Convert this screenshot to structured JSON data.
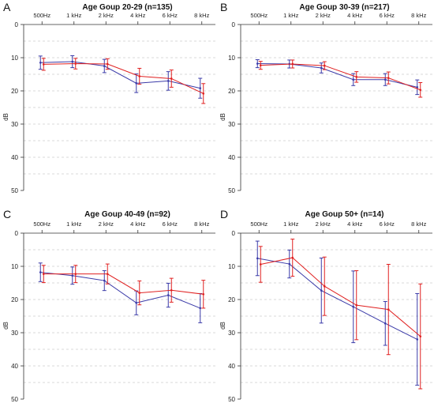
{
  "figure": {
    "colors": {
      "series_blue": "#3a3aa8",
      "series_red": "#e02020",
      "grid": "#cccccc",
      "axis": "#333333"
    }
  },
  "chart_data": [
    {
      "panel_letter": "A",
      "type": "line",
      "title": "Age Goup 20-29 (n=135)",
      "categories": [
        "500Hz",
        "1 kHz",
        "2 kHz",
        "4 kHz",
        "6 kHz",
        "8 kHz"
      ],
      "ylabel": "dB",
      "ylim": [
        0,
        50
      ],
      "y_axis_inverted": true,
      "yticks": [
        "0",
        "10",
        "20",
        "30",
        "40",
        "50"
      ],
      "grid": "horizontal dashed",
      "series": [
        {
          "color": "#3a3aa8",
          "values": [
            11.5,
            11.2,
            12.5,
            17.7,
            17.0,
            19.2
          ],
          "err": [
            2.0,
            1.8,
            2.0,
            2.8,
            2.8,
            3.0
          ]
        },
        {
          "color": "#e02020",
          "values": [
            12.0,
            11.8,
            11.9,
            15.6,
            16.3,
            20.8
          ],
          "err": [
            1.8,
            1.6,
            1.6,
            2.4,
            2.6,
            3.0
          ]
        }
      ]
    },
    {
      "panel_letter": "B",
      "type": "line",
      "title": "Age Goup 30-39 (n=217)",
      "categories": [
        "500Hz",
        "1 kHz",
        "2 kHz",
        "4 kHz",
        "6 kHz",
        "8 kHz"
      ],
      "ylabel": "dB",
      "ylim": [
        0,
        50
      ],
      "y_axis_inverted": true,
      "yticks": [
        "0",
        "10",
        "20",
        "30",
        "40",
        "50"
      ],
      "grid": "horizontal dashed",
      "series": [
        {
          "color": "#3a3aa8",
          "values": [
            11.8,
            11.9,
            13.1,
            16.6,
            16.6,
            18.9
          ],
          "err": [
            1.2,
            1.2,
            1.5,
            1.8,
            1.8,
            2.2
          ]
        },
        {
          "color": "#e02020",
          "values": [
            12.3,
            11.9,
            12.4,
            15.8,
            16.1,
            19.7
          ],
          "err": [
            1.2,
            1.2,
            1.2,
            1.6,
            1.8,
            2.2
          ]
        }
      ]
    },
    {
      "panel_letter": "C",
      "type": "line",
      "title": "Age Goup 40-49 (n=92)",
      "categories": [
        "500Hz",
        "1 kHz",
        "2 kHz",
        "4 kHz",
        "6 kHz",
        "8 kHz"
      ],
      "ylabel": "dB",
      "ylim": [
        0,
        50
      ],
      "y_axis_inverted": true,
      "yticks": [
        "0",
        "10",
        "20",
        "30",
        "40",
        "50"
      ],
      "grid": "horizontal dashed",
      "series": [
        {
          "color": "#3a3aa8",
          "values": [
            11.8,
            12.8,
            14.3,
            21.0,
            18.7,
            22.6
          ],
          "err": [
            2.8,
            2.6,
            3.0,
            3.6,
            3.6,
            4.4
          ]
        },
        {
          "color": "#e02020",
          "values": [
            12.3,
            12.3,
            12.3,
            18.0,
            17.2,
            18.4
          ],
          "err": [
            2.6,
            2.6,
            3.0,
            3.6,
            3.6,
            4.2
          ]
        }
      ]
    },
    {
      "panel_letter": "D",
      "type": "line",
      "title": "Age Goup 50+ (n=14)",
      "categories": [
        "500Hz",
        "1 kHz",
        "2 kHz",
        "4 kHz",
        "6 kHz",
        "8 kHz"
      ],
      "ylabel": "dB",
      "ylim": [
        0,
        50
      ],
      "y_axis_inverted": true,
      "yticks": [
        "0",
        "10",
        "20",
        "30",
        "40",
        "50"
      ],
      "grid": "horizontal dashed",
      "series": [
        {
          "color": "#3a3aa8",
          "values": [
            7.6,
            9.3,
            17.3,
            22.2,
            27.2,
            32.0
          ],
          "err": [
            5.2,
            4.2,
            9.8,
            10.8,
            6.6,
            13.8
          ]
        },
        {
          "color": "#e02020",
          "values": [
            9.4,
            7.4,
            16.0,
            21.7,
            23.0,
            31.1
          ],
          "err": [
            5.4,
            5.6,
            8.8,
            10.4,
            13.6,
            15.8
          ]
        }
      ]
    }
  ]
}
